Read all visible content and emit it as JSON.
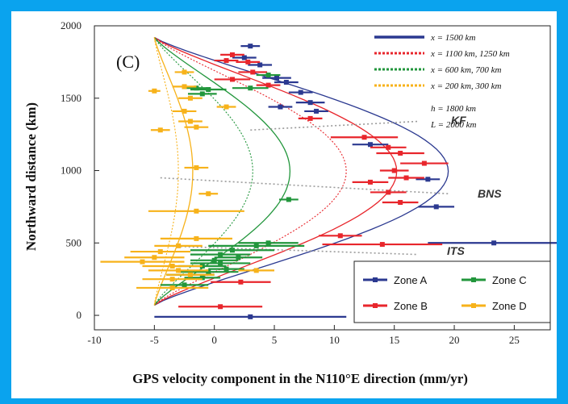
{
  "chart_data": {
    "type": "scatter",
    "panel_label": "(C)",
    "xlabel": "GPS velocity component in the N110°E direction (mm/yr)",
    "ylabel": "Northward distance (km)",
    "xlim": [
      -10,
      28
    ],
    "ylim": [
      -100,
      2000
    ],
    "xticks": [
      -10,
      -5,
      0,
      5,
      10,
      15,
      20,
      25
    ],
    "yticks": [
      0,
      500,
      1000,
      1500,
      2000
    ],
    "params": [
      "h = 1800 km",
      "L = 2000 km"
    ],
    "model_legend": [
      {
        "label": "x = 1500 km",
        "color": "#2b3990",
        "style": "solid"
      },
      {
        "label": "x = 1100 km, 1250 km",
        "color": "#e8262c",
        "style": "dotted"
      },
      {
        "label": "x = 600 km, 700 km",
        "color": "#22963c",
        "style": "dotted"
      },
      {
        "label": "x = 200 km, 300 km",
        "color": "#f7b21a",
        "style": "dotted"
      }
    ],
    "model_curves": [
      {
        "color": "#2b3990",
        "style": "solid",
        "peak": 19.5
      },
      {
        "color": "#e8262c",
        "style": "solid",
        "peak": 15.2
      },
      {
        "color": "#e8262c",
        "style": "dotted",
        "peak": 11.0
      },
      {
        "color": "#22963c",
        "style": "solid",
        "peak": 6.3
      },
      {
        "color": "#22963c",
        "style": "dotted",
        "peak": 3.2
      },
      {
        "color": "#f7b21a",
        "style": "solid",
        "peak": -1.8
      },
      {
        "color": "#f7b21a",
        "style": "dotted",
        "peak": -3.0
      }
    ],
    "zone_legend": [
      {
        "name": "Zone A",
        "color": "#2b3990"
      },
      {
        "name": "Zone C",
        "color": "#22963c"
      },
      {
        "name": "Zone B",
        "color": "#e8262c"
      },
      {
        "name": "Zone D",
        "color": "#f7b21a"
      }
    ],
    "faults": [
      {
        "label": "KF",
        "x1": 3,
        "y1": 1280,
        "x2": 17,
        "y2": 1340
      },
      {
        "label": "BNS",
        "x1": -4.5,
        "y1": 950,
        "x2": 19.5,
        "y2": 840
      },
      {
        "label": "ITS",
        "x1": -4.5,
        "y1": 480,
        "x2": 17,
        "y2": 420
      }
    ],
    "points": [
      {
        "zone": "Zone A",
        "x": 3.0,
        "y": 1860,
        "err": 0.8
      },
      {
        "zone": "Zone A",
        "x": 2.5,
        "y": 1780,
        "err": 1.0
      },
      {
        "zone": "Zone A",
        "x": 3.8,
        "y": 1730,
        "err": 1.0
      },
      {
        "zone": "Zone A",
        "x": 5.2,
        "y": 1640,
        "err": 1.2
      },
      {
        "zone": "Zone A",
        "x": 6.0,
        "y": 1610,
        "err": 1.0
      },
      {
        "zone": "Zone A",
        "x": 7.2,
        "y": 1540,
        "err": 1.0
      },
      {
        "zone": "Zone A",
        "x": 8.0,
        "y": 1470,
        "err": 1.2
      },
      {
        "zone": "Zone A",
        "x": 5.5,
        "y": 1440,
        "err": 1.0
      },
      {
        "zone": "Zone A",
        "x": 8.5,
        "y": 1410,
        "err": 1.0
      },
      {
        "zone": "Zone A",
        "x": 13.0,
        "y": 1180,
        "err": 1.5
      },
      {
        "zone": "Zone A",
        "x": 17.8,
        "y": 940,
        "err": 1.0
      },
      {
        "zone": "Zone A",
        "x": 18.5,
        "y": 750,
        "err": 1.5
      },
      {
        "zone": "Zone A",
        "x": 23.3,
        "y": 500,
        "err": 5.5
      },
      {
        "zone": "Zone A",
        "x": 3.0,
        "y": -10,
        "err": 8.0
      },
      {
        "zone": "Zone B",
        "x": 1.5,
        "y": 1800,
        "err": 1.0
      },
      {
        "zone": "Zone B",
        "x": 1.0,
        "y": 1760,
        "err": 1.0
      },
      {
        "zone": "Zone B",
        "x": 2.8,
        "y": 1750,
        "err": 1.0
      },
      {
        "zone": "Zone B",
        "x": 3.2,
        "y": 1680,
        "err": 1.2
      },
      {
        "zone": "Zone B",
        "x": 1.5,
        "y": 1630,
        "err": 1.5
      },
      {
        "zone": "Zone B",
        "x": 4.5,
        "y": 1590,
        "err": 1.0
      },
      {
        "zone": "Zone B",
        "x": 8.0,
        "y": 1360,
        "err": 1.0
      },
      {
        "zone": "Zone B",
        "x": 12.5,
        "y": 1230,
        "err": 2.8
      },
      {
        "zone": "Zone B",
        "x": 14.5,
        "y": 1160,
        "err": 1.5
      },
      {
        "zone": "Zone B",
        "x": 15.5,
        "y": 1120,
        "err": 2.0
      },
      {
        "zone": "Zone B",
        "x": 17.5,
        "y": 1050,
        "err": 2.0
      },
      {
        "zone": "Zone B",
        "x": 15.0,
        "y": 1000,
        "err": 1.2
      },
      {
        "zone": "Zone B",
        "x": 16.0,
        "y": 950,
        "err": 1.5
      },
      {
        "zone": "Zone B",
        "x": 13.0,
        "y": 920,
        "err": 1.5
      },
      {
        "zone": "Zone B",
        "x": 14.5,
        "y": 850,
        "err": 1.5
      },
      {
        "zone": "Zone B",
        "x": 15.5,
        "y": 780,
        "err": 1.5
      },
      {
        "zone": "Zone B",
        "x": 10.5,
        "y": 550,
        "err": 1.8
      },
      {
        "zone": "Zone B",
        "x": 14.0,
        "y": 490,
        "err": 5.0
      },
      {
        "zone": "Zone B",
        "x": 2.2,
        "y": 230,
        "err": 2.5
      },
      {
        "zone": "Zone B",
        "x": 0.5,
        "y": 60,
        "err": 3.5
      },
      {
        "zone": "Zone C",
        "x": -1.5,
        "y": 1570,
        "err": 1.2
      },
      {
        "zone": "Zone C",
        "x": -0.5,
        "y": 1560,
        "err": 1.5
      },
      {
        "zone": "Zone C",
        "x": -1.0,
        "y": 1530,
        "err": 1.2
      },
      {
        "zone": "Zone C",
        "x": 3.0,
        "y": 1570,
        "err": 1.5
      },
      {
        "zone": "Zone C",
        "x": 4.5,
        "y": 1660,
        "err": 1.0
      },
      {
        "zone": "Zone C",
        "x": 6.2,
        "y": 800,
        "err": 0.8
      },
      {
        "zone": "Zone C",
        "x": 4.5,
        "y": 500,
        "err": 2.5
      },
      {
        "zone": "Zone C",
        "x": 3.5,
        "y": 480,
        "err": 4.0
      },
      {
        "zone": "Zone C",
        "x": 1.5,
        "y": 450,
        "err": 3.5
      },
      {
        "zone": "Zone C",
        "x": 0.5,
        "y": 420,
        "err": 2.5
      },
      {
        "zone": "Zone C",
        "x": 2.0,
        "y": 400,
        "err": 2.0
      },
      {
        "zone": "Zone C",
        "x": 0.0,
        "y": 380,
        "err": 2.0
      },
      {
        "zone": "Zone C",
        "x": 0.5,
        "y": 360,
        "err": 2.5
      },
      {
        "zone": "Zone C",
        "x": -1.0,
        "y": 340,
        "err": 2.0
      },
      {
        "zone": "Zone C",
        "x": 1.0,
        "y": 320,
        "err": 1.5
      },
      {
        "zone": "Zone C",
        "x": -0.5,
        "y": 300,
        "err": 2.5
      },
      {
        "zone": "Zone C",
        "x": -2.0,
        "y": 280,
        "err": 2.0
      },
      {
        "zone": "Zone C",
        "x": -1.0,
        "y": 260,
        "err": 1.5
      },
      {
        "zone": "Zone C",
        "x": -2.5,
        "y": 210,
        "err": 2.0
      },
      {
        "zone": "Zone D",
        "x": -2.5,
        "y": 1680,
        "err": 0.8
      },
      {
        "zone": "Zone D",
        "x": -2.5,
        "y": 1580,
        "err": 1.0
      },
      {
        "zone": "Zone D",
        "x": -2.0,
        "y": 1500,
        "err": 1.0
      },
      {
        "zone": "Zone D",
        "x": -2.5,
        "y": 1410,
        "err": 1.0
      },
      {
        "zone": "Zone D",
        "x": -2.0,
        "y": 1340,
        "err": 1.0
      },
      {
        "zone": "Zone D",
        "x": -4.5,
        "y": 1280,
        "err": 0.8
      },
      {
        "zone": "Zone D",
        "x": -1.5,
        "y": 1300,
        "err": 1.0
      },
      {
        "zone": "Zone D",
        "x": 1.0,
        "y": 1440,
        "err": 0.8
      },
      {
        "zone": "Zone D",
        "x": -5.0,
        "y": 1550,
        "err": 0.5
      },
      {
        "zone": "Zone D",
        "x": -1.5,
        "y": 1020,
        "err": 1.0
      },
      {
        "zone": "Zone D",
        "x": -0.5,
        "y": 840,
        "err": 0.8
      },
      {
        "zone": "Zone D",
        "x": -1.5,
        "y": 720,
        "err": 4.0
      },
      {
        "zone": "Zone D",
        "x": -1.5,
        "y": 530,
        "err": 3.0
      },
      {
        "zone": "Zone D",
        "x": -3.0,
        "y": 480,
        "err": 2.0
      },
      {
        "zone": "Zone D",
        "x": -4.5,
        "y": 440,
        "err": 2.5
      },
      {
        "zone": "Zone D",
        "x": -5.0,
        "y": 400,
        "err": 2.5
      },
      {
        "zone": "Zone D",
        "x": -6.0,
        "y": 370,
        "err": 3.5
      },
      {
        "zone": "Zone D",
        "x": -3.5,
        "y": 340,
        "err": 2.5
      },
      {
        "zone": "Zone D",
        "x": -3.0,
        "y": 310,
        "err": 2.5
      },
      {
        "zone": "Zone D",
        "x": 3.5,
        "y": 310,
        "err": 1.5
      },
      {
        "zone": "Zone D",
        "x": -2.0,
        "y": 280,
        "err": 2.0
      },
      {
        "zone": "Zone D",
        "x": -3.5,
        "y": 250,
        "err": 2.5
      },
      {
        "zone": "Zone D",
        "x": -3.5,
        "y": 190,
        "err": 3.0
      }
    ]
  }
}
